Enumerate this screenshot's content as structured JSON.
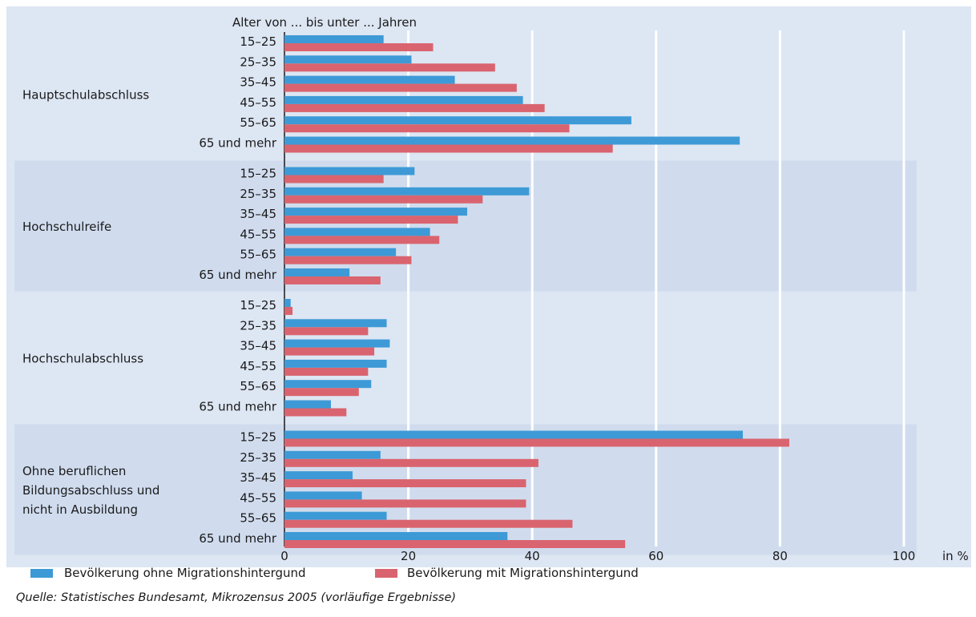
{
  "chart_data": {
    "type": "bar",
    "orientation": "horizontal",
    "age_axis_title": "Alter von ... bis unter ... Jahren",
    "x_unit": "in %",
    "xlim": [
      0,
      100
    ],
    "x_ticks": [
      0,
      20,
      40,
      60,
      80,
      100
    ],
    "grid": true,
    "legend_position": "bottom",
    "series": [
      {
        "name": "Bevölkerung ohne Migrationshintergund",
        "color": "#3d9ad6"
      },
      {
        "name": "Bevölkerung mit Migrationshintergund",
        "color": "#d9646f"
      }
    ],
    "groups": [
      {
        "label_lines": [
          "Hauptschulabschluss"
        ],
        "shaded": false,
        "rows": [
          {
            "age": "15–25",
            "values": [
              16,
              24
            ]
          },
          {
            "age": "25–35",
            "values": [
              20.5,
              34
            ]
          },
          {
            "age": "35–45",
            "values": [
              27.5,
              37.5
            ]
          },
          {
            "age": "45–55",
            "values": [
              38.5,
              42
            ]
          },
          {
            "age": "55–65",
            "values": [
              56,
              46
            ]
          },
          {
            "age": "65 und mehr",
            "values": [
              73.5,
              53
            ]
          }
        ]
      },
      {
        "label_lines": [
          "Hochschulreife"
        ],
        "shaded": true,
        "rows": [
          {
            "age": "15–25",
            "values": [
              21,
              16
            ]
          },
          {
            "age": "25–35",
            "values": [
              39.5,
              32
            ]
          },
          {
            "age": "35–45",
            "values": [
              29.5,
              28
            ]
          },
          {
            "age": "45–55",
            "values": [
              23.5,
              25
            ]
          },
          {
            "age": "55–65",
            "values": [
              18,
              20.5
            ]
          },
          {
            "age": "65 und mehr",
            "values": [
              10.5,
              15.5
            ]
          }
        ]
      },
      {
        "label_lines": [
          "Hochschulabschluss"
        ],
        "shaded": false,
        "rows": [
          {
            "age": "15–25",
            "values": [
              1,
              1.3
            ]
          },
          {
            "age": "25–35",
            "values": [
              16.5,
              13.5
            ]
          },
          {
            "age": "35–45",
            "values": [
              17,
              14.5
            ]
          },
          {
            "age": "45–55",
            "values": [
              16.5,
              13.5
            ]
          },
          {
            "age": "55–65",
            "values": [
              14,
              12
            ]
          },
          {
            "age": "65 und mehr",
            "values": [
              7.5,
              10
            ]
          }
        ]
      },
      {
        "label_lines": [
          "Ohne beruflichen",
          "Bildungsabschluss und",
          "nicht in Ausbildung"
        ],
        "shaded": true,
        "rows": [
          {
            "age": "15–25",
            "values": [
              74,
              81.5
            ]
          },
          {
            "age": "25–35",
            "values": [
              15.5,
              41
            ]
          },
          {
            "age": "35–45",
            "values": [
              11,
              39
            ]
          },
          {
            "age": "45–55",
            "values": [
              12.5,
              39
            ]
          },
          {
            "age": "55–65",
            "values": [
              16.5,
              46.5
            ]
          },
          {
            "age": "65 und mehr",
            "values": [
              36,
              55
            ]
          }
        ]
      }
    ]
  },
  "source": "Quelle: Statistisches Bundesamt, Mikrozensus 2005 (vorläufige Ergebnisse)"
}
